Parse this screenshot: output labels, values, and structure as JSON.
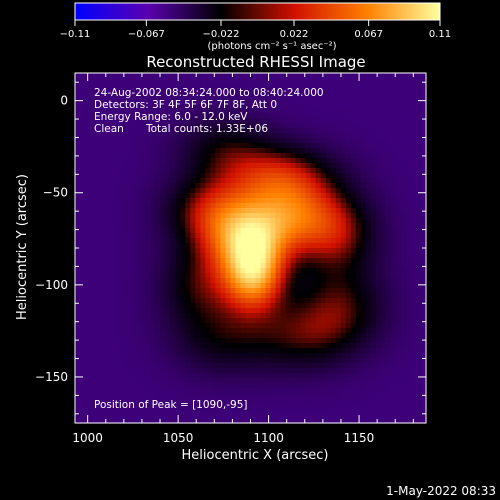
{
  "chart_data": {
    "type": "heatmap",
    "title": "Reconstructed RHESSI Image",
    "xlabel": "Heliocentric X (arcsec)",
    "ylabel": "Heliocentric Y (arcsec)",
    "xlim": [
      993,
      1187
    ],
    "ylim": [
      -175,
      15
    ],
    "x_ticks": [
      1000,
      1050,
      1100,
      1150
    ],
    "y_ticks": [
      0,
      -50,
      -100,
      -150
    ],
    "x_tick_labels": [
      "1000",
      "1050",
      "1100",
      "1150"
    ],
    "y_tick_labels": [
      "0",
      "−50",
      "−100",
      "−150"
    ],
    "colorbar": {
      "min": -0.11,
      "max": 0.11,
      "ticks": [
        -0.11,
        -0.067,
        -0.022,
        0.022,
        0.067,
        0.11
      ],
      "tick_labels": [
        "−0.11",
        "−0.067",
        "−0.022",
        "0.022",
        "0.067",
        "0.11"
      ],
      "unit_label": "(photons cm⁻² s⁻¹ asec⁻²)",
      "colors": [
        "#0000ff",
        "#5a00b0",
        "#000000",
        "#d01000",
        "#ff8000",
        "#ffffa0"
      ]
    },
    "annotations": {
      "time_range": "24-Aug-2002 08:34:24.000 to 08:40:24.000",
      "detectors": "Detectors: 3F 4F 5F 6F 7F 8F, Att 0",
      "energy_range": "Energy Range: 6.0 - 12.0 keV",
      "method": "Clean",
      "total_counts": "Total counts: 1.33E+06",
      "peak": "Position of Peak = [1090,-95]"
    },
    "peak": {
      "x": 1090,
      "y": -95
    },
    "sources": [
      {
        "x": 1092,
        "y": -95,
        "amp": 0.105,
        "sx": 12,
        "sy": 14
      },
      {
        "x": 1088,
        "y": -75,
        "amp": 0.085,
        "sx": 16,
        "sy": 14
      },
      {
        "x": 1112,
        "y": -62,
        "amp": 0.075,
        "sx": 18,
        "sy": 14
      },
      {
        "x": 1068,
        "y": -60,
        "amp": 0.06,
        "sx": 18,
        "sy": 14
      },
      {
        "x": 1138,
        "y": -72,
        "amp": 0.055,
        "sx": 16,
        "sy": 16
      },
      {
        "x": 1105,
        "y": -40,
        "amp": 0.06,
        "sx": 22,
        "sy": 12
      },
      {
        "x": 1062,
        "y": -100,
        "amp": 0.045,
        "sx": 16,
        "sy": 16
      },
      {
        "x": 1140,
        "y": -112,
        "amp": 0.045,
        "sx": 18,
        "sy": 16
      },
      {
        "x": 1118,
        "y": -128,
        "amp": 0.04,
        "sx": 20,
        "sy": 14
      },
      {
        "x": 1075,
        "y": -130,
        "amp": 0.035,
        "sx": 20,
        "sy": 14
      },
      {
        "x": 1075,
        "y": -25,
        "amp": 0.035,
        "sx": 18,
        "sy": 12
      }
    ],
    "background_level": -0.045
  },
  "footer": {
    "timestamp": "1-May-2022 08:33"
  }
}
